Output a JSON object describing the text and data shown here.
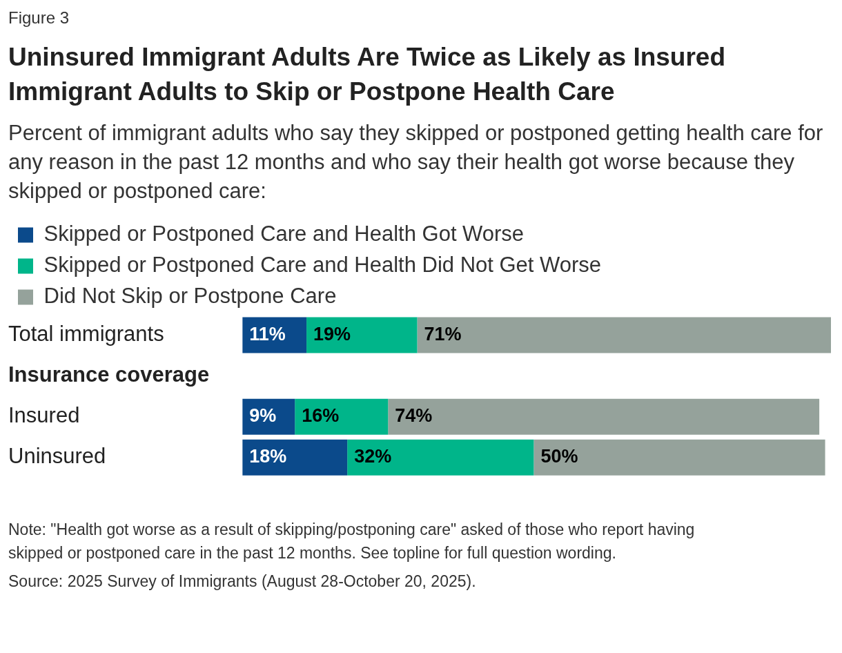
{
  "chart_data": {
    "type": "bar",
    "orientation": "horizontal",
    "stacked": true,
    "title": "Uninsured Immigrant Adults Are Twice as Likely as Insured Immigrant Adults to Skip or Postpone Health Care",
    "subtitle": "Percent of immigrant adults who say they skipped or postponed getting health care for any reason in the past 12 months and who say their health got worse because they skipped or postponed care:",
    "categories": [
      "Total immigrants",
      "Insurance coverage",
      "Insured",
      "Uninsured"
    ],
    "series": [
      {
        "name": "Skipped or Postponed Care and Health Got Worse",
        "color": "#0b4a8b",
        "values": [
          11,
          null,
          9,
          18
        ],
        "value_labels": [
          "11%",
          null,
          "9%",
          "18%"
        ]
      },
      {
        "name": "Skipped or Postponed Care and Health Did Not Get Worse",
        "color": "#00b58a",
        "values": [
          19,
          null,
          16,
          32
        ],
        "value_labels": [
          "19%",
          null,
          "16%",
          "32%"
        ]
      },
      {
        "name": "Did Not Skip or Postpone Care",
        "color": "#95a29b",
        "values": [
          71,
          null,
          74,
          50
        ],
        "value_labels": [
          "71%",
          null,
          "74%",
          "50%"
        ]
      }
    ],
    "tick_labels": "y",
    "legend": "top left",
    "annotations": [
      "Figure 3",
      "Note: \"Health got worse as a result of skipping/postponing care\" asked of those who report having skipped or postponed care in the past 12 months. See topline for full question wording.",
      "Source: 2025 Survey of Immigrants (August 28-October 20, 2025)."
    ]
  }
}
